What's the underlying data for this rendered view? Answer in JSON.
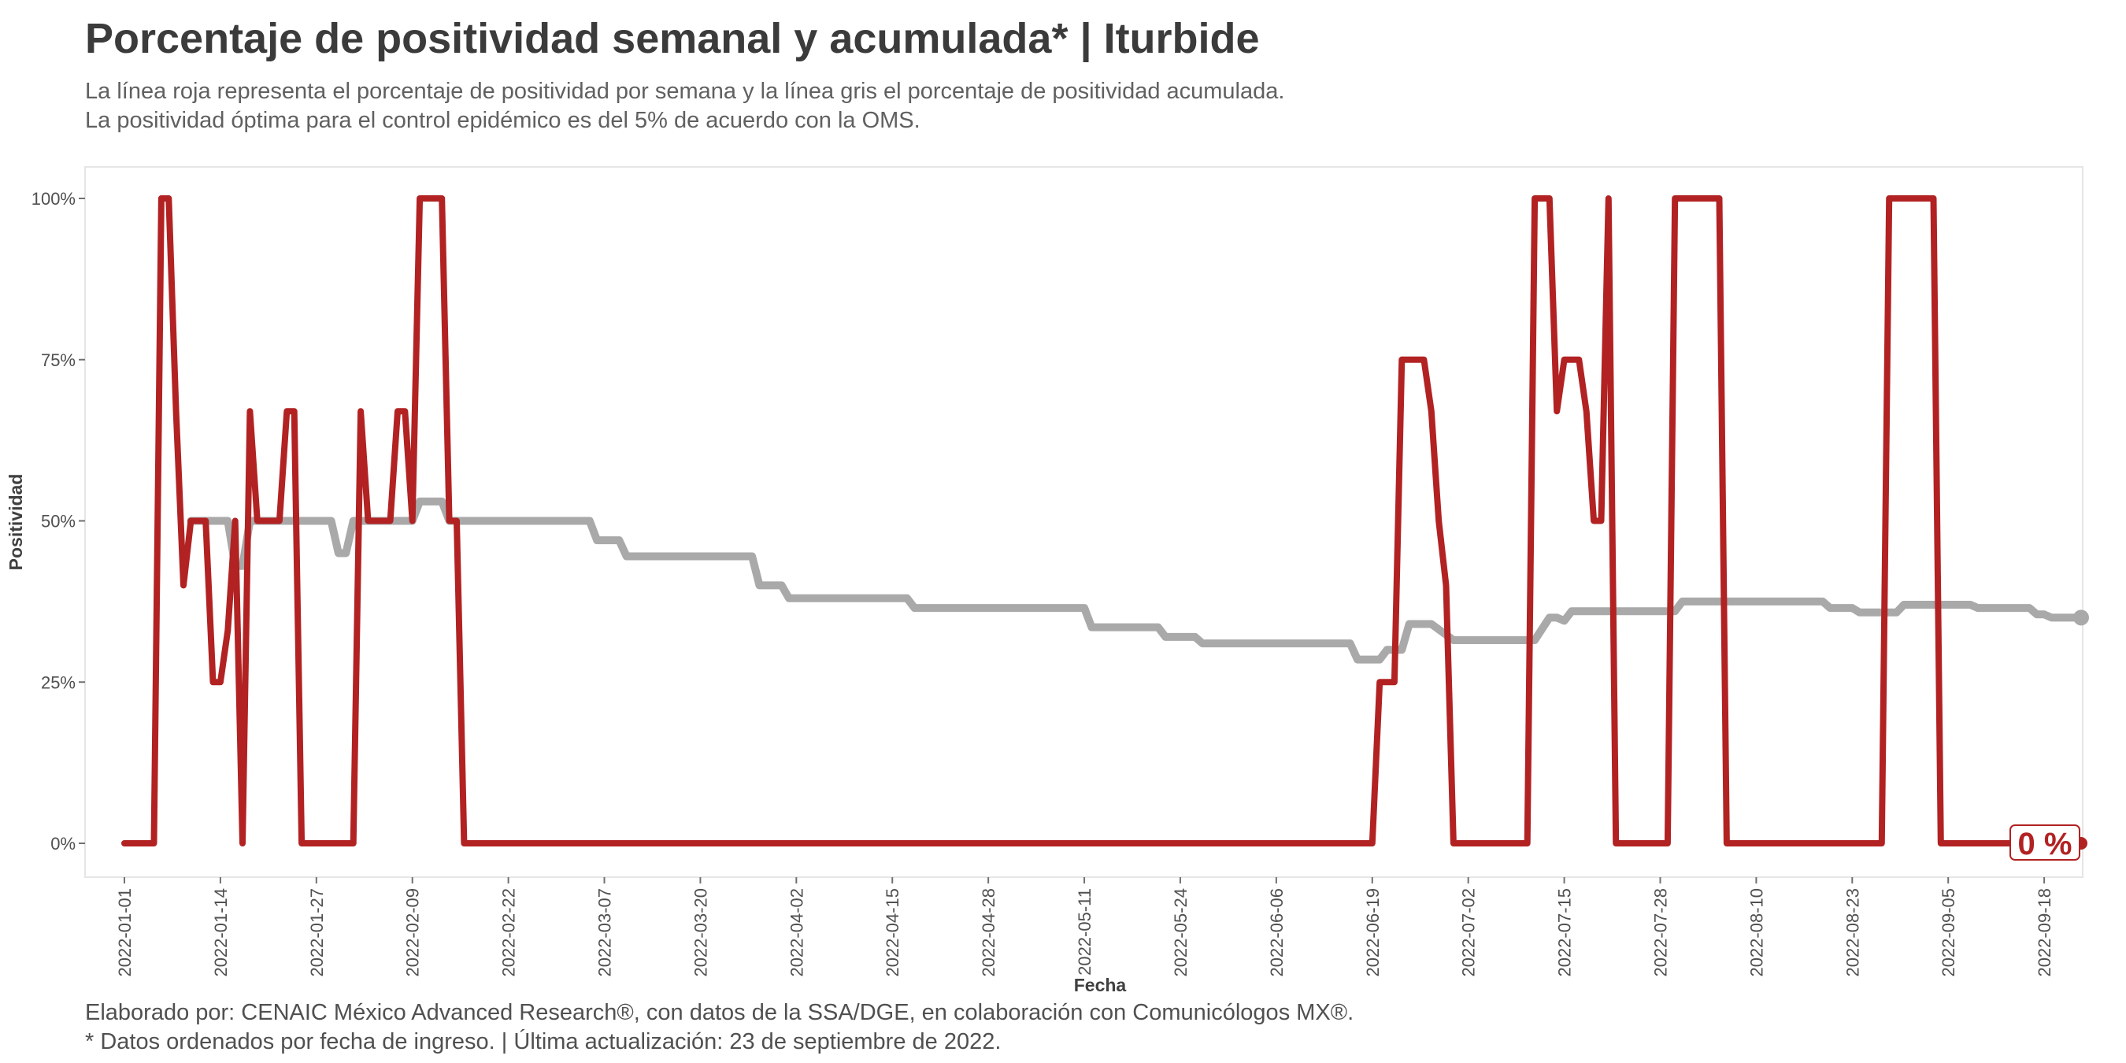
{
  "header": {
    "title": "Porcentaje de positividad semanal y acumulada* | Iturbide",
    "subtitle_line1": "La línea roja representa el porcentaje de positividad por semana y la línea gris el porcentaje de positividad acumulada.",
    "subtitle_line2": "La positividad óptima para el control epidémico es del 5% de acuerdo con la OMS."
  },
  "footer": {
    "caption_line1": "Elaborado por: CENAIC México Advanced Research®, con datos de la SSA/DGE, en colaboración con Comunicólogos MX®.",
    "caption_line2": "* Datos ordenados por fecha de ingreso. | Última actualización: 23 de septiembre de 2022."
  },
  "colors": {
    "weekly": "#b22222",
    "cumulative": "#a9a9a9",
    "panel_border": "#e6e6e6"
  },
  "chart_data": {
    "type": "line",
    "xlabel": "Fecha",
    "ylabel": "Positividad",
    "x_range": [
      "2022-01-01",
      "2022-09-23"
    ],
    "ylim": [
      0,
      100
    ],
    "x_ticks": [
      "2022-01-01",
      "2022-01-14",
      "2022-01-27",
      "2022-02-09",
      "2022-02-22",
      "2022-03-07",
      "2022-03-20",
      "2022-04-02",
      "2022-04-15",
      "2022-04-28",
      "2022-05-11",
      "2022-05-24",
      "2022-06-06",
      "2022-06-19",
      "2022-07-02",
      "2022-07-15",
      "2022-07-28",
      "2022-08-10",
      "2022-08-23",
      "2022-09-05",
      "2022-09-18"
    ],
    "y_ticks": [
      0,
      25,
      50,
      75,
      100
    ],
    "y_tick_labels": [
      "0%",
      "25%",
      "50%",
      "75%",
      "100%"
    ],
    "end_label": "0 %",
    "series": [
      {
        "key": "weekly",
        "points": [
          [
            "2022-01-01",
            0
          ],
          [
            "2022-01-05",
            0
          ],
          [
            "2022-01-06",
            100
          ],
          [
            "2022-01-07",
            100
          ],
          [
            "2022-01-08",
            67
          ],
          [
            "2022-01-09",
            40
          ],
          [
            "2022-01-10",
            50
          ],
          [
            "2022-01-12",
            50
          ],
          [
            "2022-01-13",
            25
          ],
          [
            "2022-01-14",
            25
          ],
          [
            "2022-01-15",
            33
          ],
          [
            "2022-01-16",
            50
          ],
          [
            "2022-01-17",
            0
          ],
          [
            "2022-01-18",
            67
          ],
          [
            "2022-01-19",
            50
          ],
          [
            "2022-01-22",
            50
          ],
          [
            "2022-01-23",
            67
          ],
          [
            "2022-01-24",
            67
          ],
          [
            "2022-01-25",
            0
          ],
          [
            "2022-02-01",
            0
          ],
          [
            "2022-02-02",
            67
          ],
          [
            "2022-02-03",
            50
          ],
          [
            "2022-02-06",
            50
          ],
          [
            "2022-02-07",
            67
          ],
          [
            "2022-02-08",
            67
          ],
          [
            "2022-02-09",
            50
          ],
          [
            "2022-02-10",
            100
          ],
          [
            "2022-02-13",
            100
          ],
          [
            "2022-02-14",
            50
          ],
          [
            "2022-02-15",
            50
          ],
          [
            "2022-02-16",
            0
          ],
          [
            "2022-06-19",
            0
          ],
          [
            "2022-06-20",
            25
          ],
          [
            "2022-06-22",
            25
          ],
          [
            "2022-06-23",
            75
          ],
          [
            "2022-06-26",
            75
          ],
          [
            "2022-06-27",
            67
          ],
          [
            "2022-06-28",
            50
          ],
          [
            "2022-06-29",
            40
          ],
          [
            "2022-06-30",
            0
          ],
          [
            "2022-07-10",
            0
          ],
          [
            "2022-07-11",
            100
          ],
          [
            "2022-07-13",
            100
          ],
          [
            "2022-07-14",
            67
          ],
          [
            "2022-07-15",
            75
          ],
          [
            "2022-07-17",
            75
          ],
          [
            "2022-07-18",
            67
          ],
          [
            "2022-07-19",
            50
          ],
          [
            "2022-07-20",
            50
          ],
          [
            "2022-07-21",
            100
          ],
          [
            "2022-07-22",
            0
          ],
          [
            "2022-07-29",
            0
          ],
          [
            "2022-07-30",
            100
          ],
          [
            "2022-08-05",
            100
          ],
          [
            "2022-08-06",
            0
          ],
          [
            "2022-08-27",
            0
          ],
          [
            "2022-08-28",
            100
          ],
          [
            "2022-09-03",
            100
          ],
          [
            "2022-09-04",
            0
          ],
          [
            "2022-09-23",
            0
          ]
        ]
      },
      {
        "key": "cumulative",
        "points": [
          [
            "2022-01-10",
            50
          ],
          [
            "2022-01-15",
            50
          ],
          [
            "2022-01-16",
            43
          ],
          [
            "2022-01-17",
            43
          ],
          [
            "2022-01-18",
            50
          ],
          [
            "2022-01-29",
            50
          ],
          [
            "2022-01-30",
            45
          ],
          [
            "2022-01-31",
            45
          ],
          [
            "2022-02-01",
            50
          ],
          [
            "2022-02-09",
            50
          ],
          [
            "2022-02-10",
            53
          ],
          [
            "2022-02-13",
            53
          ],
          [
            "2022-02-14",
            50
          ],
          [
            "2022-03-05",
            50
          ],
          [
            "2022-03-06",
            47
          ],
          [
            "2022-03-09",
            47
          ],
          [
            "2022-03-10",
            44.5
          ],
          [
            "2022-03-27",
            44.5
          ],
          [
            "2022-03-28",
            40
          ],
          [
            "2022-03-31",
            40
          ],
          [
            "2022-04-01",
            38
          ],
          [
            "2022-04-17",
            38
          ],
          [
            "2022-04-18",
            36.5
          ],
          [
            "2022-05-11",
            36.5
          ],
          [
            "2022-05-12",
            33.5
          ],
          [
            "2022-05-21",
            33.5
          ],
          [
            "2022-05-22",
            32
          ],
          [
            "2022-05-26",
            32
          ],
          [
            "2022-05-27",
            31
          ],
          [
            "2022-06-16",
            31
          ],
          [
            "2022-06-17",
            28.5
          ],
          [
            "2022-06-20",
            28.5
          ],
          [
            "2022-06-21",
            30
          ],
          [
            "2022-06-23",
            30
          ],
          [
            "2022-06-24",
            34
          ],
          [
            "2022-06-27",
            34
          ],
          [
            "2022-06-30",
            31.5
          ],
          [
            "2022-07-11",
            31.5
          ],
          [
            "2022-07-13",
            35
          ],
          [
            "2022-07-14",
            35
          ],
          [
            "2022-07-15",
            34.5
          ],
          [
            "2022-07-16",
            36
          ],
          [
            "2022-07-30",
            36
          ],
          [
            "2022-07-31",
            37.5
          ],
          [
            "2022-08-19",
            37.5
          ],
          [
            "2022-08-20",
            36.5
          ],
          [
            "2022-08-23",
            36.5
          ],
          [
            "2022-08-24",
            35.8
          ],
          [
            "2022-08-29",
            35.8
          ],
          [
            "2022-08-30",
            37
          ],
          [
            "2022-09-08",
            37
          ],
          [
            "2022-09-09",
            36.5
          ],
          [
            "2022-09-16",
            36.5
          ],
          [
            "2022-09-17",
            35.5
          ],
          [
            "2022-09-18",
            35.5
          ],
          [
            "2022-09-19",
            35
          ],
          [
            "2022-09-23",
            35
          ]
        ]
      }
    ]
  }
}
